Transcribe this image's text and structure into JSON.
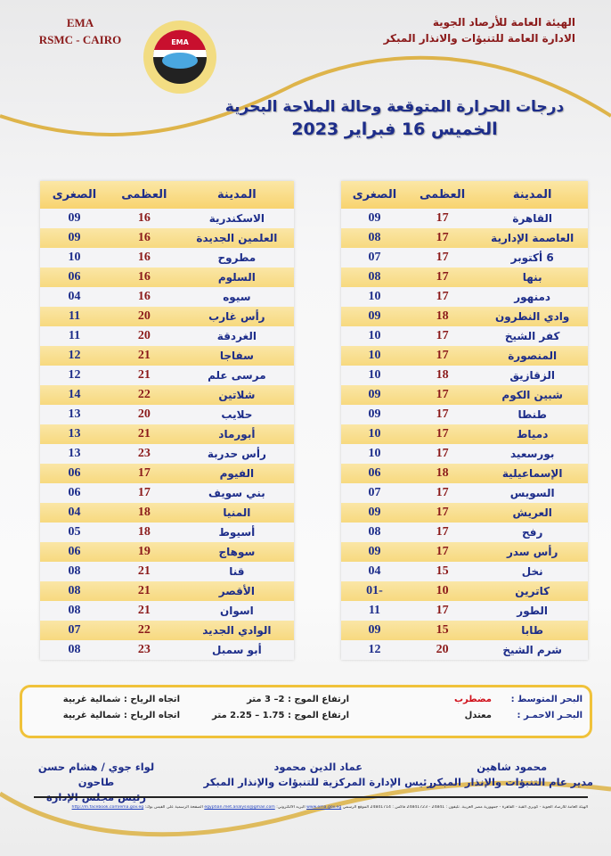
{
  "header": {
    "ema": "EMA",
    "rsmc": "RSMC - CAIRO",
    "logo_text": "EMA",
    "org_line1": "الهيئة العامة للأرصاد الجوية",
    "org_line2": "الادارة العامة للتنبؤات والانذار المبكر",
    "title": "درجات الحرارة المتوقعة وحالة الملاحة البحرية",
    "date": "الخميس 16 فبراير 2023"
  },
  "columns": {
    "city": "المدينة",
    "max": "العظمى",
    "min": "الصغرى"
  },
  "right_table": [
    [
      "القاهرة",
      "17",
      "09"
    ],
    [
      "العاصمة الإدارية",
      "17",
      "08"
    ],
    [
      "6 أكتوبر",
      "17",
      "07"
    ],
    [
      "بنها",
      "17",
      "08"
    ],
    [
      "دمنهور",
      "17",
      "10"
    ],
    [
      "وادي النطرون",
      "18",
      "09"
    ],
    [
      "كفر الشيخ",
      "17",
      "10"
    ],
    [
      "المنصورة",
      "17",
      "10"
    ],
    [
      "الزقازيق",
      "18",
      "10"
    ],
    [
      "شبين الكوم",
      "17",
      "09"
    ],
    [
      "طنطا",
      "17",
      "09"
    ],
    [
      "دمياط",
      "17",
      "10"
    ],
    [
      "بورسعيد",
      "17",
      "10"
    ],
    [
      "الإسماعيلية",
      "18",
      "06"
    ],
    [
      "السويس",
      "17",
      "07"
    ],
    [
      "العريش",
      "17",
      "09"
    ],
    [
      "رفح",
      "17",
      "08"
    ],
    [
      "رأس سدر",
      "17",
      "09"
    ],
    [
      "نخل",
      "15",
      "04"
    ],
    [
      "كاترين",
      "10",
      "-01"
    ],
    [
      "الطور",
      "17",
      "11"
    ],
    [
      "طابا",
      "15",
      "09"
    ],
    [
      "شرم الشيخ",
      "20",
      "12"
    ]
  ],
  "left_table": [
    [
      "الاسكندرية",
      "16",
      "09"
    ],
    [
      "العلمين الجديدة",
      "16",
      "09"
    ],
    [
      "مطروح",
      "16",
      "10"
    ],
    [
      "السلوم",
      "16",
      "06"
    ],
    [
      "سيوه",
      "16",
      "04"
    ],
    [
      "رأس غارب",
      "20",
      "11"
    ],
    [
      "الغردقة",
      "20",
      "11"
    ],
    [
      "سفاجا",
      "21",
      "12"
    ],
    [
      "مرسى علم",
      "21",
      "12"
    ],
    [
      "شلاتين",
      "22",
      "14"
    ],
    [
      "حلايب",
      "20",
      "13"
    ],
    [
      "أبورماد",
      "21",
      "13"
    ],
    [
      "رأس حدربة",
      "23",
      "13"
    ],
    [
      "الفيوم",
      "17",
      "06"
    ],
    [
      "بني سويف",
      "17",
      "06"
    ],
    [
      "المنيا",
      "18",
      "04"
    ],
    [
      "أسيوط",
      "18",
      "05"
    ],
    [
      "سوهاج",
      "19",
      "06"
    ],
    [
      "قنا",
      "21",
      "08"
    ],
    [
      "الأقصر",
      "21",
      "08"
    ],
    [
      "اسوان",
      "21",
      "08"
    ],
    [
      "الوادي الجديد",
      "22",
      "07"
    ],
    [
      "أبو سمبل",
      "23",
      "08"
    ]
  ],
  "sea": {
    "med": {
      "label": "البحر المتوسط :",
      "state": "مضطرب",
      "state_color": "#d0101a",
      "waves": "ارتفاع الموج :  2– 3 متر",
      "wind": "اتجاه الرياح : شمالية غربية"
    },
    "red": {
      "label": "البحـر الاحمـر :",
      "state": "معتدل",
      "waves": "ارتفاع الموج : 1.75 – 2.25 متر",
      "wind": "اتجاه الرياح : شمالية غربية"
    }
  },
  "signatures": [
    {
      "name": "محمود شاهين",
      "role": "مدير عام التنبؤات والإنذار المبكر"
    },
    {
      "name": "عماد الدين محمود",
      "role": "رئيس الإدارة المركزية للتنبؤات والإنذار المبكر"
    },
    {
      "name": "لواء جوي / هشام حسن طاحون",
      "role": "رئيس مجلس الإدارة"
    }
  ],
  "footer": {
    "text": "الهيئة العامة للأرصاد الجوية - كوبري القبة - القاهرة - جمهورية مصر العربية. تليفون : 24841 - 24841723 فاكس : 24841714 الموقع الرسمي",
    "site": "www.ema.gov.eg",
    "email_label": "البريد الالكتروني:",
    "email": "egyptian.met.analysis@gmail.com",
    "fb_label": "الصفحة الرسمية على الفيس بوك:",
    "fb": "http://m.facebook.com/ema.gov.eg"
  },
  "colors": {
    "accent_gold": "#f0c23a",
    "text_blue": "#1d2d8a",
    "max_red": "#8b1a1a"
  }
}
